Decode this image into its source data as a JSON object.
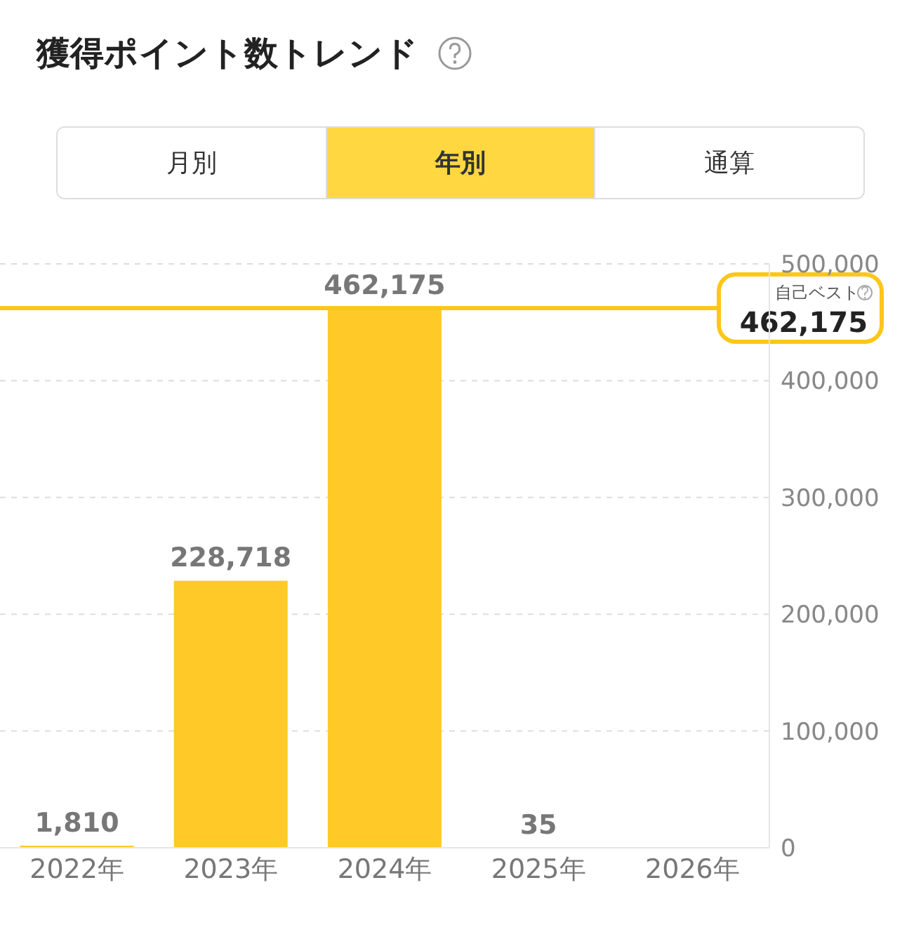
{
  "chart_data": {
    "type": "bar",
    "title": "獲得ポイント数トレンド",
    "categories": [
      "2022年",
      "2023年",
      "2024年",
      "2025年",
      "2026年"
    ],
    "values": [
      1810,
      228718,
      462175,
      35,
      null
    ],
    "color": "#ffca28",
    "ylim": [
      0,
      500000
    ],
    "yticks": [
      {
        "value": 0,
        "label": "0"
      },
      {
        "value": 100000,
        "label": "100,000"
      },
      {
        "value": 200000,
        "label": "200,000"
      },
      {
        "value": 300000,
        "label": "300,000"
      },
      {
        "value": 400000,
        "label": "400,000"
      },
      {
        "value": 500000,
        "label": "500,000"
      }
    ],
    "grid": "y",
    "value_labels": [
      "1,810",
      "228,718",
      "462,175",
      "35",
      null
    ],
    "ref_lines": [
      {
        "axis": "y",
        "value": 462175,
        "label": "自己ベスト",
        "color": "#ffc61a"
      }
    ],
    "annotations": [
      "月別",
      "年別",
      "通算",
      "462,175"
    ]
  }
}
